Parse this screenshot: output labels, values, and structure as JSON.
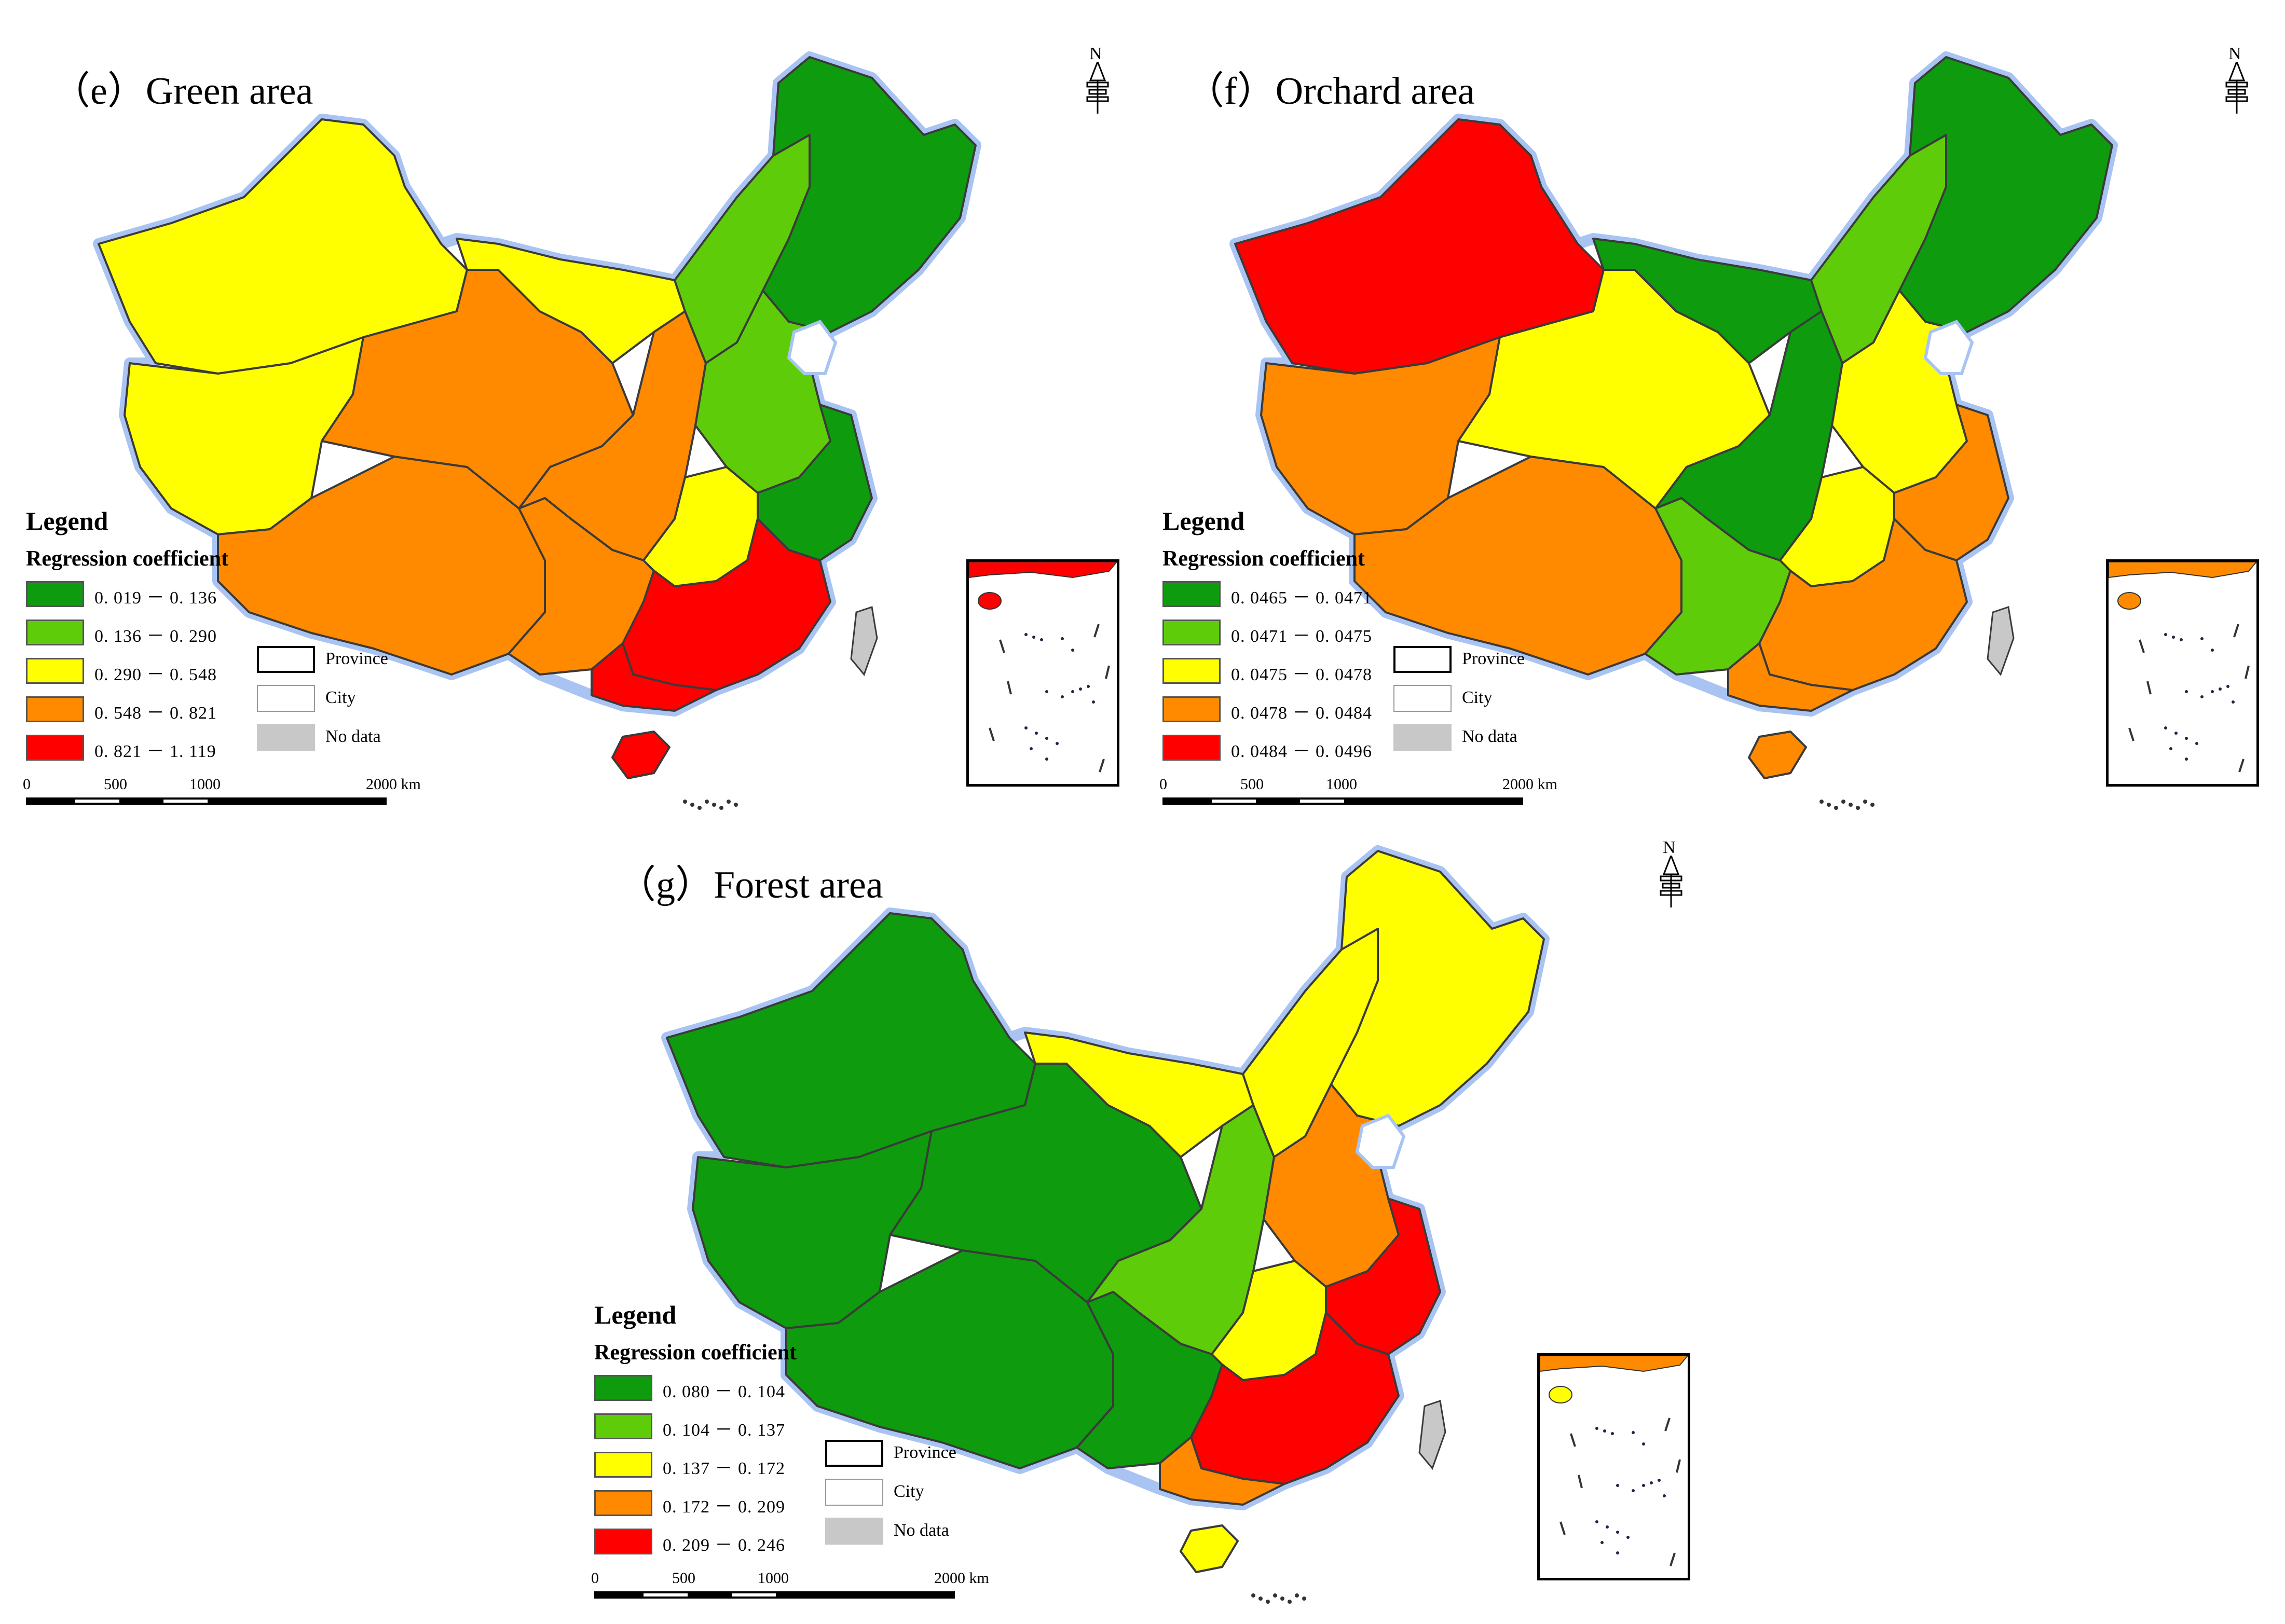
{
  "colors": {
    "class1": "#0e9b0e",
    "class2": "#5fcc0a",
    "class3": "#ffff00",
    "class4": "#ff8a00",
    "class5": "#ff0000",
    "no_data": "#c8c8c8",
    "border": "#3a3a3a",
    "coast_halo": "#a9c4f2"
  },
  "common": {
    "legend_title": "Legend",
    "legend_subtitle": "Regression coefficient",
    "province_label": "Province",
    "city_label": "City",
    "no_data_label": "No data",
    "north_letter": "N",
    "scale": {
      "s0": "0",
      "s1": "500",
      "s2": "1000",
      "s3": "2000 km"
    }
  },
  "panels": [
    {
      "id": "e",
      "title": "（e）Green area",
      "classes": [
        "0. 019 － 0. 136",
        "0. 136 － 0. 290",
        "0. 290 － 0. 548",
        "0. 548 － 0. 821",
        "0. 821 － 1. 119"
      ],
      "region_classes": {
        "northeast": 1,
        "north_china_plain": 2,
        "east_coast": 1,
        "inner_mongolia_east": 2,
        "inner_mongolia_west": 3,
        "xinjiang_north": 3,
        "xinjiang_south": 3,
        "qinghai_gansu": 4,
        "tibet": 4,
        "central_west": 4,
        "southwest": 4,
        "south_central": 3,
        "southeast": 5,
        "south_coast": 5,
        "hainan": 5
      }
    },
    {
      "id": "f",
      "title": "（f）Orchard area",
      "classes": [
        "0. 0465 － 0. 0471",
        "0. 0471 － 0. 0475",
        "0. 0475 － 0. 0478",
        "0. 0478 － 0. 0484",
        "0. 0484 － 0. 0496"
      ],
      "region_classes": {
        "northeast": 1,
        "north_china_plain": 3,
        "east_coast": 4,
        "inner_mongolia_east": 2,
        "inner_mongolia_west": 1,
        "xinjiang_north": 5,
        "xinjiang_south": 4,
        "qinghai_gansu": 3,
        "tibet": 4,
        "central_west": 1,
        "southwest": 2,
        "south_central": 3,
        "southeast": 4,
        "south_coast": 4,
        "hainan": 4
      }
    },
    {
      "id": "g",
      "title": "（g）Forest area",
      "classes": [
        "0. 080 － 0. 104",
        "0. 104 － 0. 137",
        "0. 137 － 0. 172",
        "0. 172 － 0. 209",
        "0. 209 － 0. 246"
      ],
      "region_classes": {
        "northeast": 3,
        "north_china_plain": 4,
        "east_coast": 5,
        "inner_mongolia_east": 3,
        "inner_mongolia_west": 3,
        "xinjiang_north": 1,
        "xinjiang_south": 1,
        "qinghai_gansu": 1,
        "tibet": 1,
        "central_west": 2,
        "southwest": 1,
        "south_central": 3,
        "southeast": 5,
        "south_coast": 4,
        "hainan": 3
      }
    }
  ]
}
